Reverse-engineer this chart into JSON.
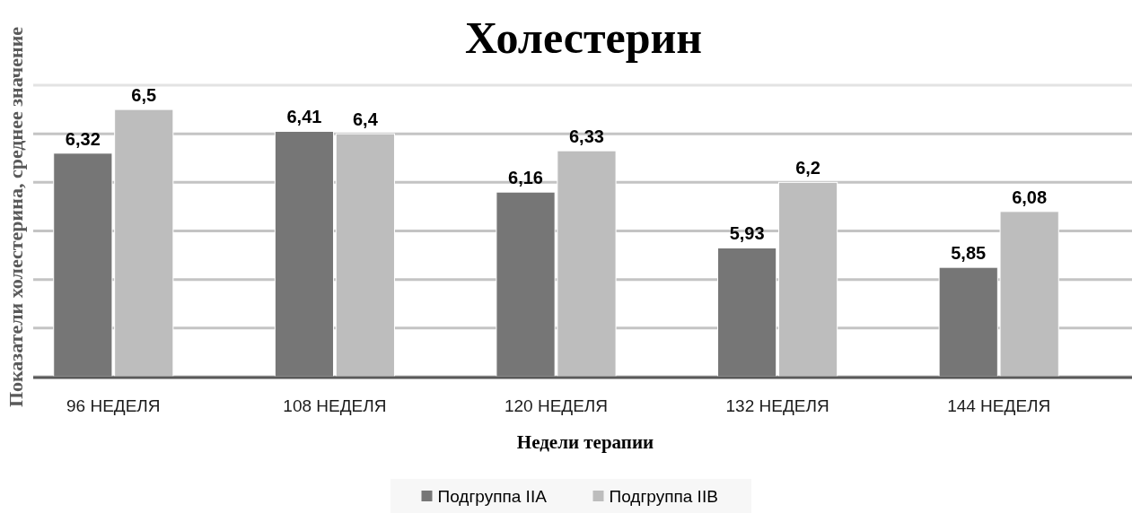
{
  "chart_data": {
    "type": "bar",
    "title": "Холестерин",
    "xlabel": "Недели терапии",
    "ylabel": "Показатели холестерина, среднее значение",
    "categories": [
      "96 НЕДЕЛЯ",
      "108 НЕДЕЛЯ",
      "120 НЕДЕЛЯ",
      "132 НЕДЕЛЯ",
      "144 НЕДЕЛЯ"
    ],
    "series": [
      {
        "name": "Подгруппа IIA",
        "color": "#767676",
        "values": [
          6.32,
          6.41,
          6.16,
          5.93,
          5.85
        ],
        "value_labels": [
          "6,32",
          "6,41",
          "6,16",
          "5,93",
          "5,85"
        ]
      },
      {
        "name": "Подгруппа IIB",
        "color": "#bdbdbd",
        "values": [
          6.5,
          6.4,
          6.33,
          6.2,
          6.08
        ],
        "value_labels": [
          "6,5",
          "6,4",
          "6,33",
          "6,2",
          "6,08"
        ]
      }
    ],
    "ylim": [
      5.4,
      6.6
    ],
    "yticks": [
      {
        "value": 5.4,
        "label": null
      },
      {
        "value": 5.6,
        "label": null
      },
      {
        "value": 5.8,
        "label": null
      },
      {
        "value": 6.0,
        "label": null
      },
      {
        "value": 6.2,
        "label": null
      },
      {
        "value": 6.4,
        "label": null
      },
      {
        "value": 6.6,
        "label": null
      }
    ],
    "tick_labels": "x",
    "grid": "y",
    "legend": "bottom"
  }
}
